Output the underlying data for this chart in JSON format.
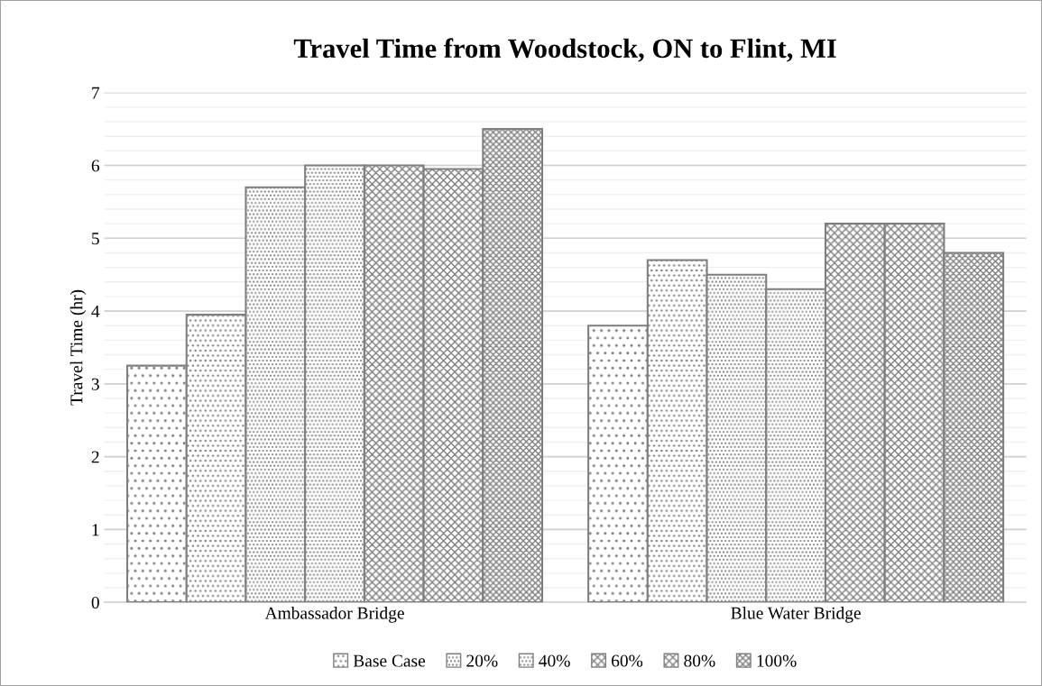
{
  "chart_data": {
    "type": "bar",
    "title": "Travel Time from Woodstock, ON to Flint, MI",
    "ylabel": "Travel Time (hr)",
    "categories": [
      "Ambassador Bridge",
      "Blue Water Bridge"
    ],
    "series": [
      {
        "color": "#7f7f7f",
        "values": [
          3.25,
          3.8
        ]
      },
      {
        "name": "Base Case",
        "color": "#7f7f7f",
        "values": [
          3.95,
          4.7
        ]
      },
      {
        "name": "20%",
        "color": "#7f7f7f",
        "values": [
          5.7,
          4.5
        ]
      },
      {
        "name": "40%",
        "color": "#7f7f7f",
        "values": [
          6.0,
          4.3
        ]
      },
      {
        "name": "60%",
        "color": "#7f7f7f",
        "values": [
          6.0,
          5.2
        ]
      },
      {
        "name": "80%",
        "color": "#7f7f7f",
        "values": [
          5.95,
          5.2
        ]
      },
      {
        "name": "100%",
        "color": "#7f7f7f",
        "values": [
          6.5,
          4.8
        ]
      }
    ],
    "ylim": [
      0,
      7
    ],
    "yticks": [
      0,
      1,
      2,
      3,
      4,
      5,
      6,
      7
    ],
    "grid": "y",
    "legend": "bottom"
  }
}
